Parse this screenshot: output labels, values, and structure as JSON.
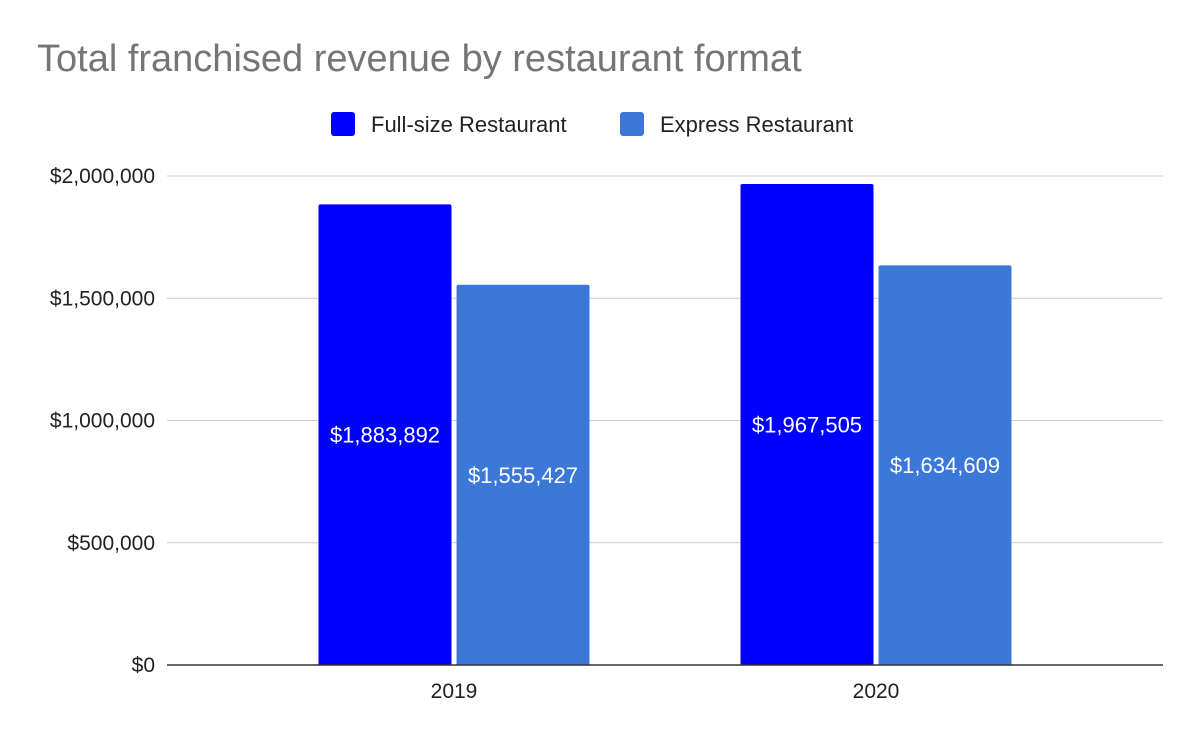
{
  "chart_data": {
    "type": "bar",
    "title": "Total franchised revenue by restaurant format",
    "categories": [
      "2019",
      "2020"
    ],
    "series": [
      {
        "name": "Full-size Restaurant",
        "color": "#0000ff",
        "values": [
          1883892,
          1967505
        ],
        "labels": [
          "$1,883,892",
          "$1,967,505"
        ]
      },
      {
        "name": "Express Restaurant",
        "color": "#3c78d8",
        "values": [
          1555427,
          1634609
        ],
        "labels": [
          "$1,555,427",
          "$1,634,609"
        ]
      }
    ],
    "yticks": [
      0,
      500000,
      1000000,
      1500000,
      2000000
    ],
    "ytick_labels": [
      "$0",
      "$500,000",
      "$1,000,000",
      "$1,500,000",
      "$2,000,000"
    ],
    "ylim": [
      0,
      2000000
    ],
    "xlabel": "",
    "ylabel": "",
    "legend_position": "top-center",
    "grid": true
  }
}
